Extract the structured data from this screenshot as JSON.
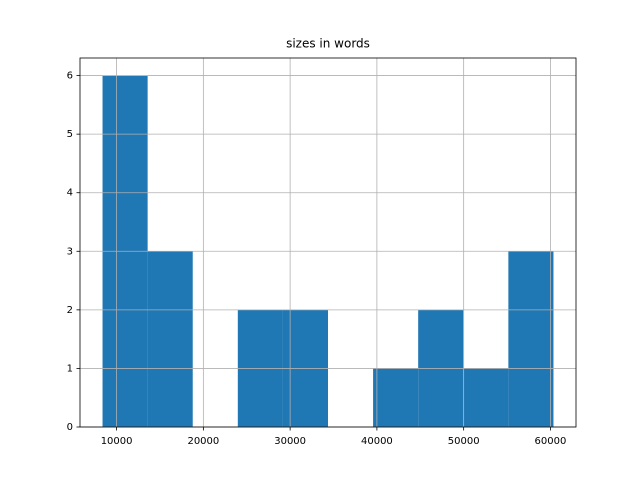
{
  "chart_data": {
    "type": "histogram",
    "title": "sizes in words",
    "bins": [
      8380,
      13577,
      18774,
      23971,
      29168,
      34365,
      39562,
      44759,
      49956,
      55153,
      60350
    ],
    "values": [
      6,
      3,
      0,
      2,
      2,
      0,
      1,
      2,
      1,
      3
    ],
    "color": "#1f77b4",
    "xlim": [
      5782,
      62948
    ],
    "xticks": [
      10000,
      20000,
      30000,
      40000,
      50000,
      60000
    ],
    "ylim": [
      0,
      6.3
    ],
    "yticks": [
      0,
      1,
      2,
      3,
      4,
      5,
      6
    ],
    "grid": true
  }
}
